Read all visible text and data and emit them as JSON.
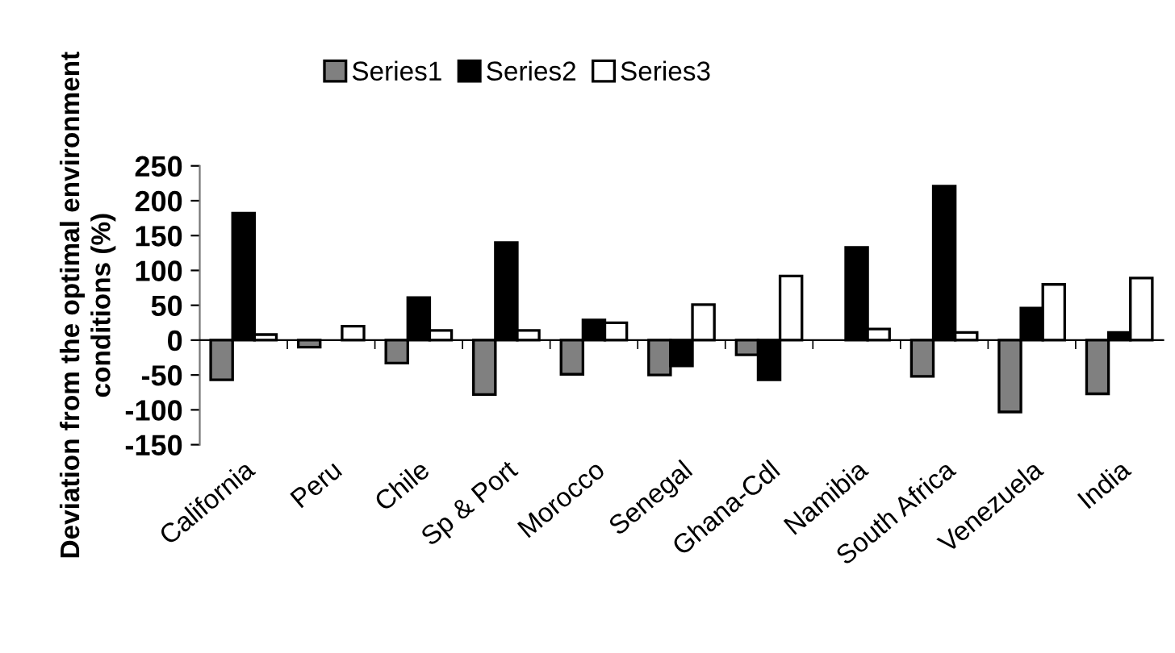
{
  "chart_data": {
    "type": "bar",
    "ylabel": "Deviation from the optimal environment\nconditions (%)",
    "categories": [
      "California",
      "Peru",
      "Chile",
      "Sp & Port",
      "Morocco",
      "Senegal",
      "Ghana-Cdl",
      "Namibia",
      "South Africa",
      "Venezuela",
      "India"
    ],
    "series": [
      {
        "name": "Series1",
        "color": "#808080",
        "values": [
          -57,
          -10,
          -33,
          -78,
          -49,
          -50,
          -21,
          null,
          -52,
          -103,
          -77
        ]
      },
      {
        "name": "Series2",
        "color": "#000000",
        "values": [
          182,
          null,
          61,
          140,
          29,
          -37,
          -57,
          133,
          221,
          46,
          11
        ]
      },
      {
        "name": "Series3",
        "color": "#ffffff",
        "values": [
          8,
          20,
          14,
          14,
          25,
          51,
          92,
          16,
          11,
          80,
          89
        ]
      }
    ],
    "ylim": [
      -150,
      250
    ],
    "yticks": [
      -150,
      -100,
      -50,
      0,
      50,
      100,
      150,
      200,
      250
    ],
    "legend": "top"
  }
}
